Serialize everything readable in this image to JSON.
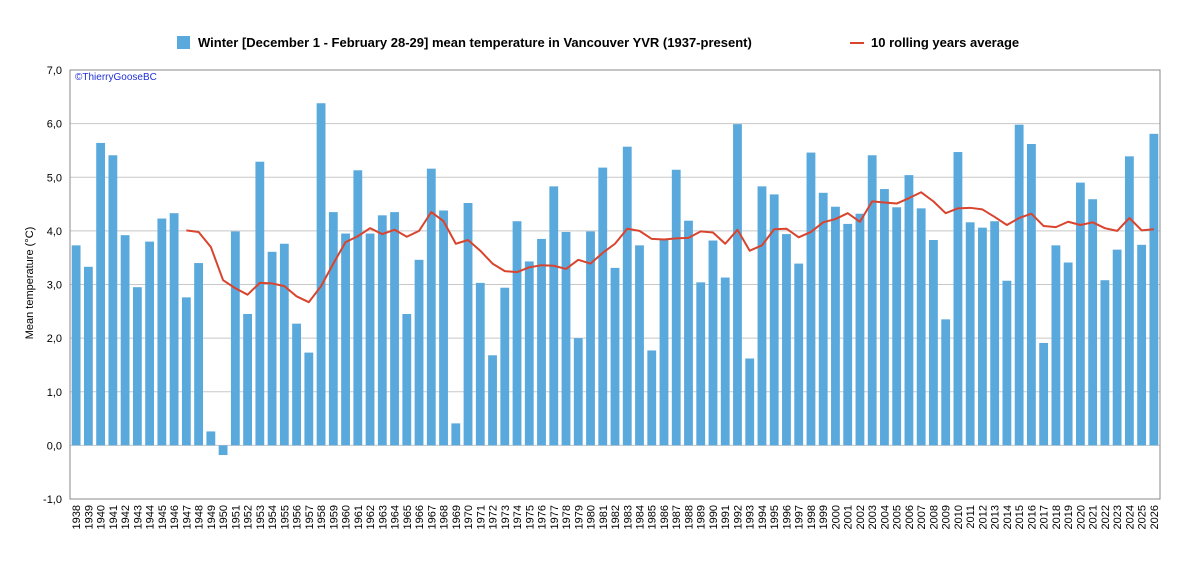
{
  "chart_data": {
    "type": "bar",
    "title": "",
    "credit": "©ThierryGooseBC",
    "ylabel": "Mean temperature (°C)",
    "xlabel": "",
    "ylim": [
      -1.0,
      7.0
    ],
    "yticks": [
      "-1,0",
      "0,0",
      "1,0",
      "2,0",
      "3,0",
      "4,0",
      "5,0",
      "6,0",
      "7,0"
    ],
    "grid": true,
    "legend_position": "top",
    "colors": {
      "bar": "#5aa9dc",
      "line": "#d9442e",
      "grid": "#c8c8c8",
      "frame": "#888888"
    },
    "categories": [
      "1938",
      "1939",
      "1940",
      "1941",
      "1942",
      "1943",
      "1944",
      "1945",
      "1946",
      "1947",
      "1948",
      "1949",
      "1950",
      "1951",
      "1952",
      "1953",
      "1954",
      "1955",
      "1956",
      "1957",
      "1958",
      "1959",
      "1960",
      "1961",
      "1962",
      "1963",
      "1964",
      "1965",
      "1966",
      "1967",
      "1968",
      "1969",
      "1970",
      "1971",
      "1972",
      "1973",
      "1974",
      "1975",
      "1976",
      "1977",
      "1978",
      "1979",
      "1980",
      "1981",
      "1982",
      "1983",
      "1984",
      "1985",
      "1986",
      "1987",
      "1988",
      "1989",
      "1990",
      "1991",
      "1992",
      "1993",
      "1994",
      "1995",
      "1996",
      "1997",
      "1998",
      "1999",
      "2000",
      "2001",
      "2002",
      "2003",
      "2004",
      "2005",
      "2006",
      "2007",
      "2008",
      "2009",
      "2010",
      "2011",
      "2012",
      "2013",
      "2014",
      "2015",
      "2016",
      "2017",
      "2018",
      "2019",
      "2020",
      "2021",
      "2022",
      "2023",
      "2024",
      "2025",
      "2026"
    ],
    "series": [
      {
        "name": "Winter [December 1 - February 28-29] mean temperature in Vancouver YVR (1937-present)",
        "kind": "bar",
        "values": [
          3.73,
          3.33,
          5.64,
          5.41,
          3.92,
          2.95,
          3.8,
          4.23,
          4.33,
          2.76,
          3.4,
          0.26,
          -0.18,
          3.99,
          2.45,
          5.29,
          3.61,
          3.76,
          2.27,
          1.73,
          6.38,
          4.35,
          3.95,
          5.13,
          3.95,
          4.29,
          4.35,
          2.45,
          3.46,
          5.16,
          4.38,
          0.41,
          4.52,
          3.03,
          1.68,
          2.94,
          4.18,
          3.43,
          3.85,
          4.83,
          3.98,
          2.0,
          3.99,
          5.18,
          3.31,
          5.57,
          3.73,
          1.77,
          3.83,
          5.14,
          4.19,
          3.04,
          3.82,
          3.13,
          5.99,
          1.62,
          4.83,
          4.68,
          3.94,
          3.39,
          5.46,
          4.71,
          4.45,
          4.13,
          4.32,
          5.41,
          4.78,
          4.44,
          5.04,
          4.42,
          3.83,
          2.35,
          5.47,
          4.16,
          4.06,
          4.18,
          3.07,
          5.98,
          5.62,
          1.91,
          3.73,
          3.41,
          4.9,
          4.59,
          3.08,
          3.65,
          5.39,
          3.74,
          5.81
        ]
      },
      {
        "name": "10 rolling years average",
        "kind": "line",
        "values": [
          null,
          null,
          null,
          null,
          null,
          null,
          null,
          null,
          null,
          4.01,
          3.98,
          3.7,
          3.08,
          2.93,
          2.81,
          3.03,
          3.02,
          2.97,
          2.78,
          2.67,
          2.97,
          3.39,
          3.79,
          3.9,
          4.05,
          3.94,
          4.02,
          3.89,
          4.0,
          4.35,
          4.18,
          3.76,
          3.83,
          3.63,
          3.39,
          3.25,
          3.23,
          3.32,
          3.36,
          3.35,
          3.29,
          3.46,
          3.39,
          3.59,
          3.76,
          4.04,
          4.0,
          3.85,
          3.84,
          3.86,
          3.87,
          3.99,
          3.97,
          3.76,
          4.02,
          3.63,
          3.73,
          4.03,
          4.04,
          3.88,
          3.98,
          4.16,
          4.22,
          4.33,
          4.17,
          4.55,
          4.53,
          4.51,
          4.61,
          4.72,
          4.55,
          4.33,
          4.42,
          4.43,
          4.4,
          4.26,
          4.11,
          4.24,
          4.32,
          4.09,
          4.07,
          4.17,
          4.11,
          4.16,
          4.05,
          4.0,
          4.24,
          4.01,
          4.03
        ]
      }
    ]
  }
}
